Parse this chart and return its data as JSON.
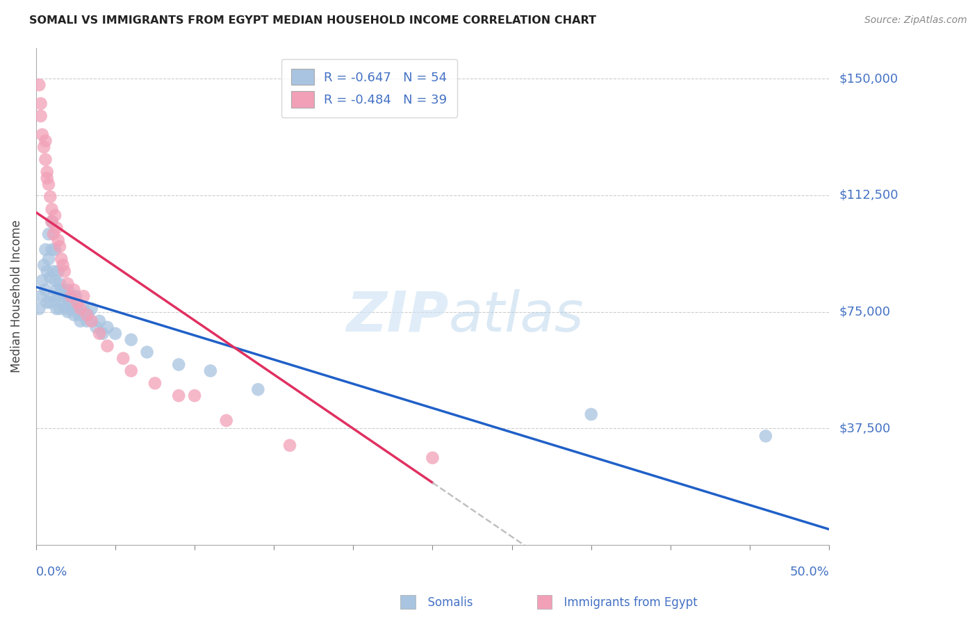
{
  "title": "SOMALI VS IMMIGRANTS FROM EGYPT MEDIAN HOUSEHOLD INCOME CORRELATION CHART",
  "source": "Source: ZipAtlas.com",
  "xlabel_somali": "Somalis",
  "xlabel_egypt": "Immigrants from Egypt",
  "ylabel": "Median Household Income",
  "xlim": [
    0.0,
    0.5
  ],
  "ylim": [
    0,
    160000
  ],
  "xticks": [
    0.0,
    0.05,
    0.1,
    0.15,
    0.2,
    0.25,
    0.3,
    0.35,
    0.4,
    0.45,
    0.5
  ],
  "yticks": [
    0,
    37500,
    75000,
    112500,
    150000
  ],
  "yticklabels": [
    "",
    "$37,500",
    "$75,000",
    "$112,500",
    "$150,000"
  ],
  "ytick_color": "#4472c4",
  "xtick_color": "#4472c4",
  "grid_color": "#cccccc",
  "somali_color": "#a8c4e0",
  "egypt_color": "#f2a0b8",
  "somali_line_color": "#2060c8",
  "egypt_line_color": "#e03060",
  "watermark_zip": "ZIP",
  "watermark_atlas": "atlas",
  "somali_points_x": [
    0.002,
    0.003,
    0.004,
    0.005,
    0.006,
    0.006,
    0.007,
    0.007,
    0.008,
    0.008,
    0.009,
    0.009,
    0.01,
    0.01,
    0.011,
    0.011,
    0.012,
    0.012,
    0.013,
    0.013,
    0.014,
    0.014,
    0.015,
    0.015,
    0.016,
    0.017,
    0.018,
    0.019,
    0.02,
    0.02,
    0.021,
    0.022,
    0.023,
    0.024,
    0.025,
    0.026,
    0.027,
    0.028,
    0.03,
    0.032,
    0.033,
    0.035,
    0.038,
    0.04,
    0.042,
    0.045,
    0.05,
    0.06,
    0.07,
    0.09,
    0.11,
    0.14,
    0.35,
    0.46
  ],
  "somali_points_y": [
    76000,
    80000,
    85000,
    90000,
    95000,
    82000,
    88000,
    78000,
    100000,
    92000,
    86000,
    78000,
    104000,
    95000,
    88000,
    80000,
    95000,
    85000,
    82000,
    76000,
    88000,
    80000,
    84000,
    76000,
    82000,
    78000,
    80000,
    76000,
    82000,
    75000,
    78000,
    80000,
    76000,
    74000,
    80000,
    76000,
    74000,
    72000,
    76000,
    72000,
    74000,
    76000,
    70000,
    72000,
    68000,
    70000,
    68000,
    66000,
    62000,
    58000,
    56000,
    50000,
    42000,
    35000
  ],
  "egypt_points_x": [
    0.002,
    0.003,
    0.003,
    0.004,
    0.005,
    0.006,
    0.006,
    0.007,
    0.007,
    0.008,
    0.009,
    0.01,
    0.01,
    0.011,
    0.012,
    0.013,
    0.014,
    0.015,
    0.016,
    0.017,
    0.018,
    0.02,
    0.022,
    0.024,
    0.026,
    0.028,
    0.03,
    0.032,
    0.035,
    0.04,
    0.045,
    0.055,
    0.06,
    0.075,
    0.09,
    0.1,
    0.12,
    0.16,
    0.25
  ],
  "egypt_points_y": [
    148000,
    142000,
    138000,
    132000,
    128000,
    124000,
    130000,
    120000,
    118000,
    116000,
    112000,
    108000,
    104000,
    100000,
    106000,
    102000,
    98000,
    96000,
    92000,
    90000,
    88000,
    84000,
    80000,
    82000,
    78000,
    76000,
    80000,
    74000,
    72000,
    68000,
    64000,
    60000,
    56000,
    52000,
    48000,
    48000,
    40000,
    32000,
    28000
  ],
  "somali_R": -0.647,
  "somali_N": 54,
  "egypt_R": -0.484,
  "egypt_N": 39,
  "somali_line_x": [
    0.0,
    0.5
  ],
  "egypt_line_solid_end": 0.25,
  "egypt_line_dash_end": 0.45
}
